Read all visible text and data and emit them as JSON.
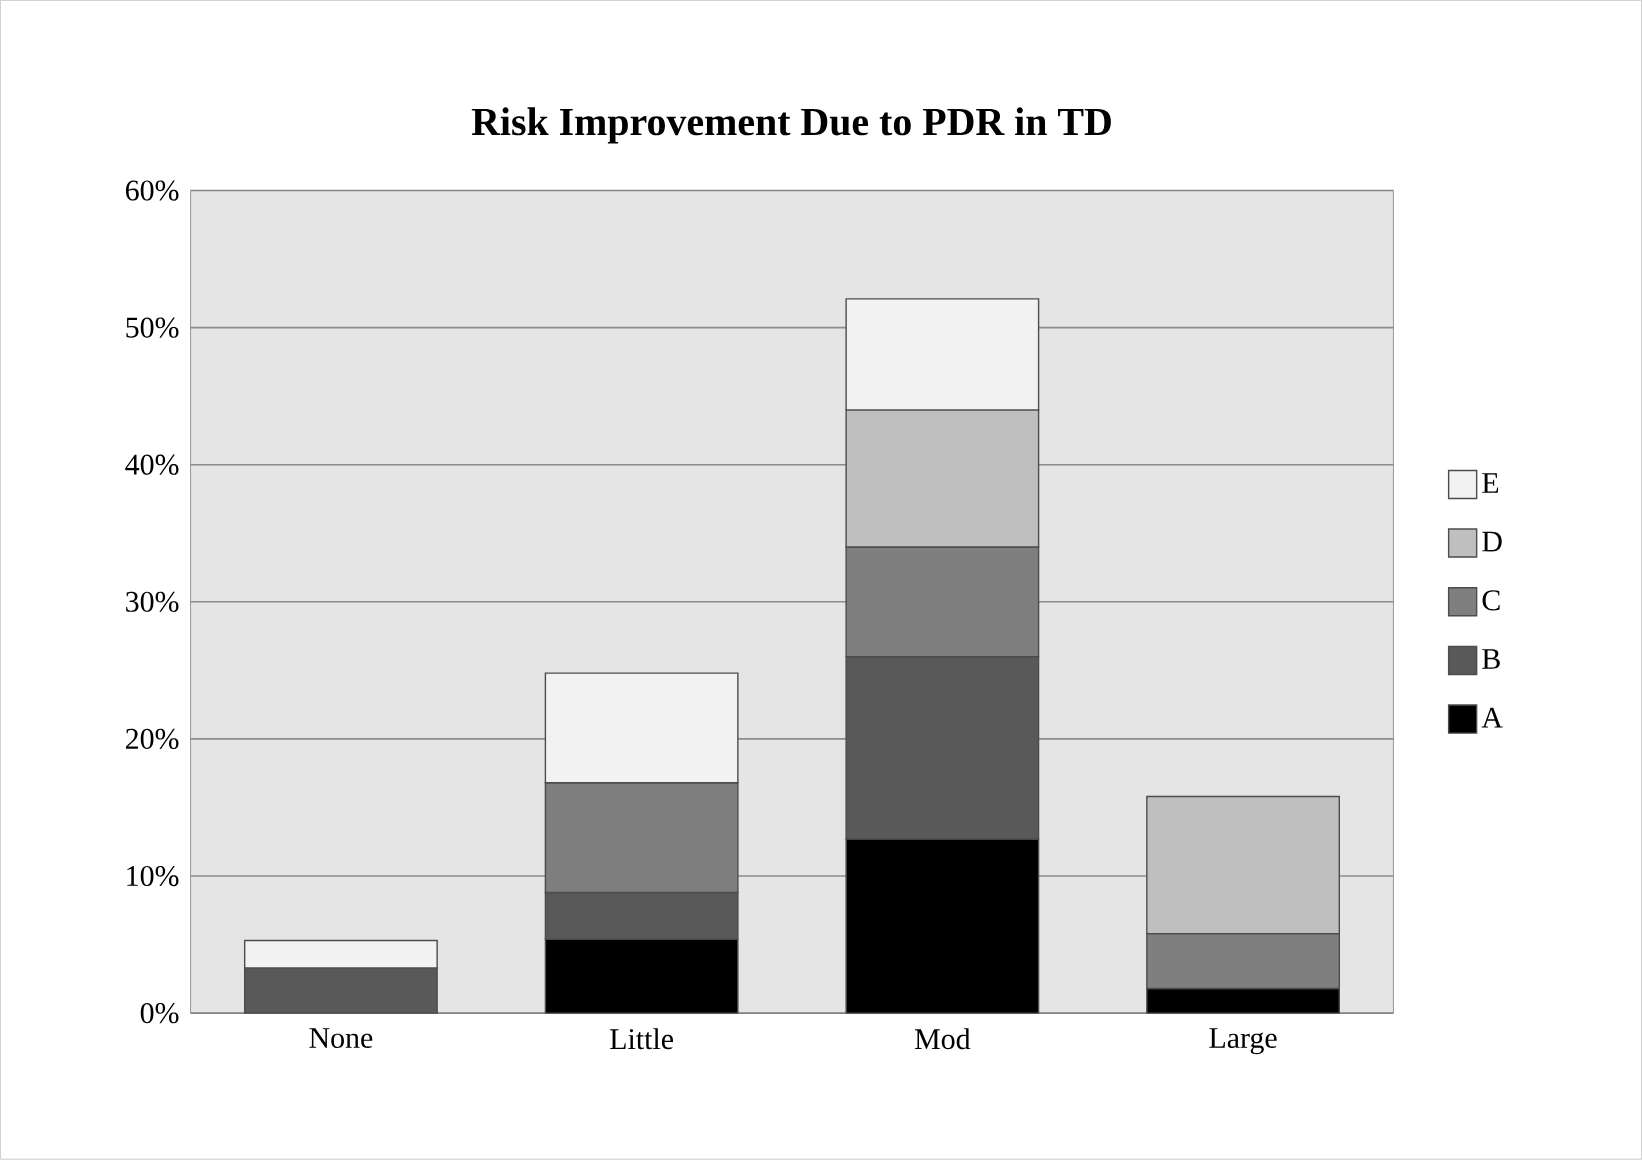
{
  "chart_data": {
    "type": "bar",
    "title": "Risk Improvement Due to PDR in TD",
    "stacked": true,
    "categories": [
      "None",
      "Little",
      "Mod",
      "Large"
    ],
    "series": [
      {
        "name": "A",
        "color": "#000000",
        "values": [
          null,
          5.4,
          12.7,
          1.8
        ]
      },
      {
        "name": "B",
        "color": "#595959",
        "values": [
          3.3,
          3.4,
          13.3,
          null
        ]
      },
      {
        "name": "C",
        "color": "#7f7f7f",
        "values": [
          null,
          8.0,
          8.0,
          4.0
        ]
      },
      {
        "name": "D",
        "color": "#bfbfbf",
        "values": [
          null,
          null,
          10.0,
          10.0
        ]
      },
      {
        "name": "E",
        "color": "#f2f2f2",
        "values": [
          2.0,
          8.0,
          8.1,
          null
        ]
      }
    ],
    "ylim": [
      0,
      60
    ],
    "yticks": [
      {
        "value": 0,
        "label": "0%"
      },
      {
        "value": 10,
        "label": "10%"
      },
      {
        "value": 20,
        "label": "20%"
      },
      {
        "value": 30,
        "label": "30%"
      },
      {
        "value": 40,
        "label": "40%"
      },
      {
        "value": 50,
        "label": "50%"
      },
      {
        "value": 60,
        "label": "60%"
      }
    ],
    "grid": "y",
    "legend": "right"
  }
}
